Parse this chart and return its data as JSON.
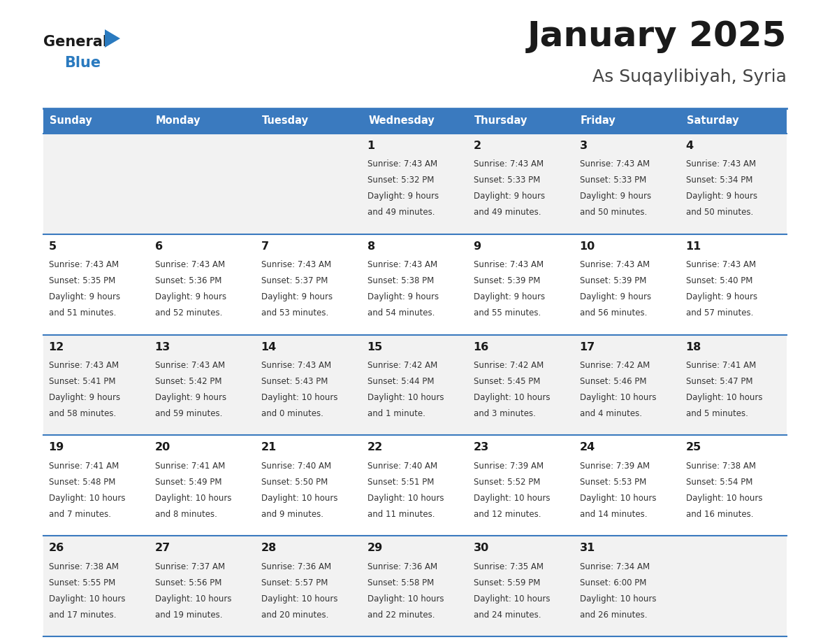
{
  "title": "January 2025",
  "subtitle": "As Suqaylibiyah, Syria",
  "days_of_week": [
    "Sunday",
    "Monday",
    "Tuesday",
    "Wednesday",
    "Thursday",
    "Friday",
    "Saturday"
  ],
  "header_bg": "#3a7abf",
  "header_text": "#ffffff",
  "row_bg_even": "#f2f2f2",
  "row_bg_odd": "#ffffff",
  "border_color": "#3a7abf",
  "title_color": "#1a1a1a",
  "subtitle_color": "#444444",
  "day_number_color": "#1a1a1a",
  "cell_text_color": "#333333",
  "logo_general_color": "#1a1a1a",
  "logo_blue_color": "#2a7abf",
  "logo_triangle_color": "#2a7abf",
  "calendar_data": [
    [
      null,
      null,
      null,
      {
        "day": 1,
        "sunrise": "7:43 AM",
        "sunset": "5:32 PM",
        "daylight": "9 hours and 49 minutes."
      },
      {
        "day": 2,
        "sunrise": "7:43 AM",
        "sunset": "5:33 PM",
        "daylight": "9 hours and 49 minutes."
      },
      {
        "day": 3,
        "sunrise": "7:43 AM",
        "sunset": "5:33 PM",
        "daylight": "9 hours and 50 minutes."
      },
      {
        "day": 4,
        "sunrise": "7:43 AM",
        "sunset": "5:34 PM",
        "daylight": "9 hours and 50 minutes."
      }
    ],
    [
      {
        "day": 5,
        "sunrise": "7:43 AM",
        "sunset": "5:35 PM",
        "daylight": "9 hours and 51 minutes."
      },
      {
        "day": 6,
        "sunrise": "7:43 AM",
        "sunset": "5:36 PM",
        "daylight": "9 hours and 52 minutes."
      },
      {
        "day": 7,
        "sunrise": "7:43 AM",
        "sunset": "5:37 PM",
        "daylight": "9 hours and 53 minutes."
      },
      {
        "day": 8,
        "sunrise": "7:43 AM",
        "sunset": "5:38 PM",
        "daylight": "9 hours and 54 minutes."
      },
      {
        "day": 9,
        "sunrise": "7:43 AM",
        "sunset": "5:39 PM",
        "daylight": "9 hours and 55 minutes."
      },
      {
        "day": 10,
        "sunrise": "7:43 AM",
        "sunset": "5:39 PM",
        "daylight": "9 hours and 56 minutes."
      },
      {
        "day": 11,
        "sunrise": "7:43 AM",
        "sunset": "5:40 PM",
        "daylight": "9 hours and 57 minutes."
      }
    ],
    [
      {
        "day": 12,
        "sunrise": "7:43 AM",
        "sunset": "5:41 PM",
        "daylight": "9 hours and 58 minutes."
      },
      {
        "day": 13,
        "sunrise": "7:43 AM",
        "sunset": "5:42 PM",
        "daylight": "9 hours and 59 minutes."
      },
      {
        "day": 14,
        "sunrise": "7:43 AM",
        "sunset": "5:43 PM",
        "daylight": "10 hours and 0 minutes."
      },
      {
        "day": 15,
        "sunrise": "7:42 AM",
        "sunset": "5:44 PM",
        "daylight": "10 hours and 1 minute."
      },
      {
        "day": 16,
        "sunrise": "7:42 AM",
        "sunset": "5:45 PM",
        "daylight": "10 hours and 3 minutes."
      },
      {
        "day": 17,
        "sunrise": "7:42 AM",
        "sunset": "5:46 PM",
        "daylight": "10 hours and 4 minutes."
      },
      {
        "day": 18,
        "sunrise": "7:41 AM",
        "sunset": "5:47 PM",
        "daylight": "10 hours and 5 minutes."
      }
    ],
    [
      {
        "day": 19,
        "sunrise": "7:41 AM",
        "sunset": "5:48 PM",
        "daylight": "10 hours and 7 minutes."
      },
      {
        "day": 20,
        "sunrise": "7:41 AM",
        "sunset": "5:49 PM",
        "daylight": "10 hours and 8 minutes."
      },
      {
        "day": 21,
        "sunrise": "7:40 AM",
        "sunset": "5:50 PM",
        "daylight": "10 hours and 9 minutes."
      },
      {
        "day": 22,
        "sunrise": "7:40 AM",
        "sunset": "5:51 PM",
        "daylight": "10 hours and 11 minutes."
      },
      {
        "day": 23,
        "sunrise": "7:39 AM",
        "sunset": "5:52 PM",
        "daylight": "10 hours and 12 minutes."
      },
      {
        "day": 24,
        "sunrise": "7:39 AM",
        "sunset": "5:53 PM",
        "daylight": "10 hours and 14 minutes."
      },
      {
        "day": 25,
        "sunrise": "7:38 AM",
        "sunset": "5:54 PM",
        "daylight": "10 hours and 16 minutes."
      }
    ],
    [
      {
        "day": 26,
        "sunrise": "7:38 AM",
        "sunset": "5:55 PM",
        "daylight": "10 hours and 17 minutes."
      },
      {
        "day": 27,
        "sunrise": "7:37 AM",
        "sunset": "5:56 PM",
        "daylight": "10 hours and 19 minutes."
      },
      {
        "day": 28,
        "sunrise": "7:36 AM",
        "sunset": "5:57 PM",
        "daylight": "10 hours and 20 minutes."
      },
      {
        "day": 29,
        "sunrise": "7:36 AM",
        "sunset": "5:58 PM",
        "daylight": "10 hours and 22 minutes."
      },
      {
        "day": 30,
        "sunrise": "7:35 AM",
        "sunset": "5:59 PM",
        "daylight": "10 hours and 24 minutes."
      },
      {
        "day": 31,
        "sunrise": "7:34 AM",
        "sunset": "6:00 PM",
        "daylight": "10 hours and 26 minutes."
      },
      null
    ]
  ]
}
